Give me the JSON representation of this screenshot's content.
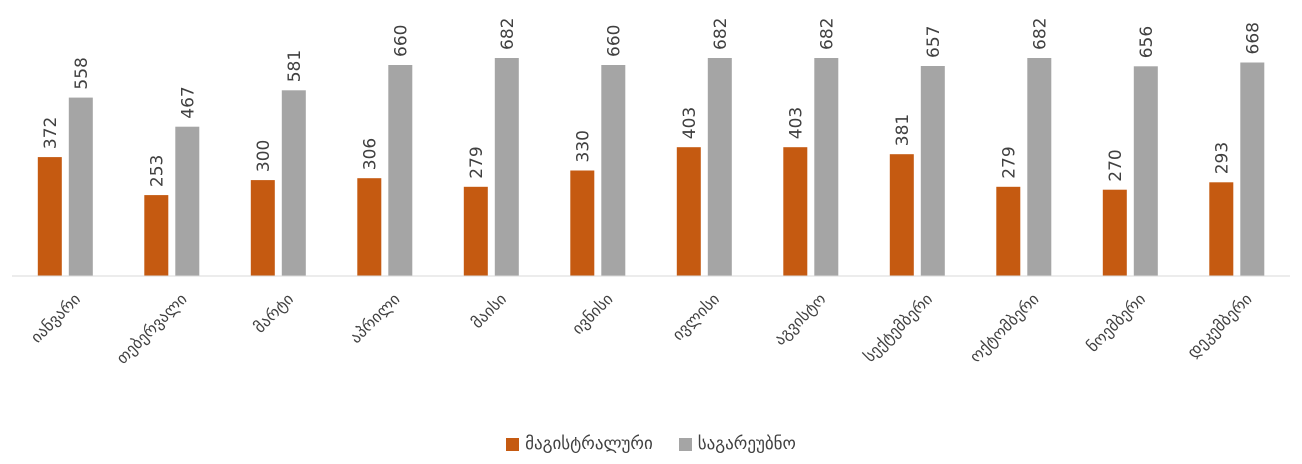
{
  "chart_data": {
    "type": "bar",
    "categories": [
      "იანვარი",
      "თებერვალი",
      "მარტი",
      "აპრილი",
      "მაისი",
      "ივნისი",
      "ივლისი",
      "აგვისტო",
      "სექტემბერი",
      "ოქტომბერი",
      "ნოემბერი",
      "დეკემბერი"
    ],
    "series": [
      {
        "name": "მაგისტრალური",
        "color": "#C55A11",
        "values": [
          372,
          253,
          300,
          306,
          279,
          330,
          403,
          403,
          381,
          279,
          270,
          293
        ]
      },
      {
        "name": "საგარეუბნო",
        "color": "#A5A5A5",
        "values": [
          558,
          467,
          581,
          660,
          682,
          660,
          682,
          682,
          657,
          682,
          656,
          668
        ]
      }
    ],
    "ylim": [
      0,
      700
    ],
    "grid": false,
    "legend_position": "bottom"
  }
}
